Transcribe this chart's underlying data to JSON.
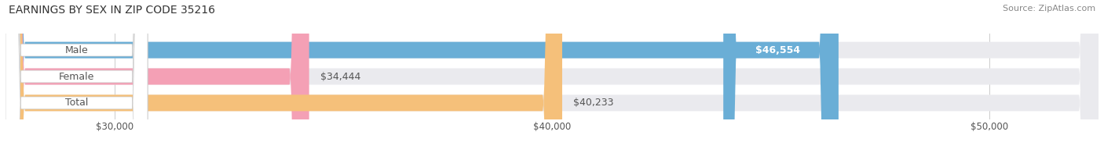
{
  "title": "EARNINGS BY SEX IN ZIP CODE 35216",
  "source": "Source: ZipAtlas.com",
  "categories": [
    "Male",
    "Female",
    "Total"
  ],
  "values": [
    46554,
    34444,
    40233
  ],
  "bar_colors": [
    "#6aaed6",
    "#f4a0b5",
    "#f5c07a"
  ],
  "bar_bg_color": "#eaeaee",
  "xmin": 27500,
  "xmax": 52500,
  "xticks": [
    30000,
    40000,
    50000
  ],
  "xtick_labels": [
    "$30,000",
    "$40,000",
    "$50,000"
  ],
  "value_labels": [
    "$46,554",
    "$34,444",
    "$40,233"
  ],
  "value_label_inside": [
    true,
    false,
    false
  ],
  "bg_color": "#ffffff",
  "title_fontsize": 10,
  "source_fontsize": 8,
  "bar_label_fontsize": 9,
  "value_label_fontsize": 9,
  "tick_fontsize": 8.5,
  "bar_height": 0.62,
  "label_text_color": "#555555",
  "grid_color": "#cccccc"
}
